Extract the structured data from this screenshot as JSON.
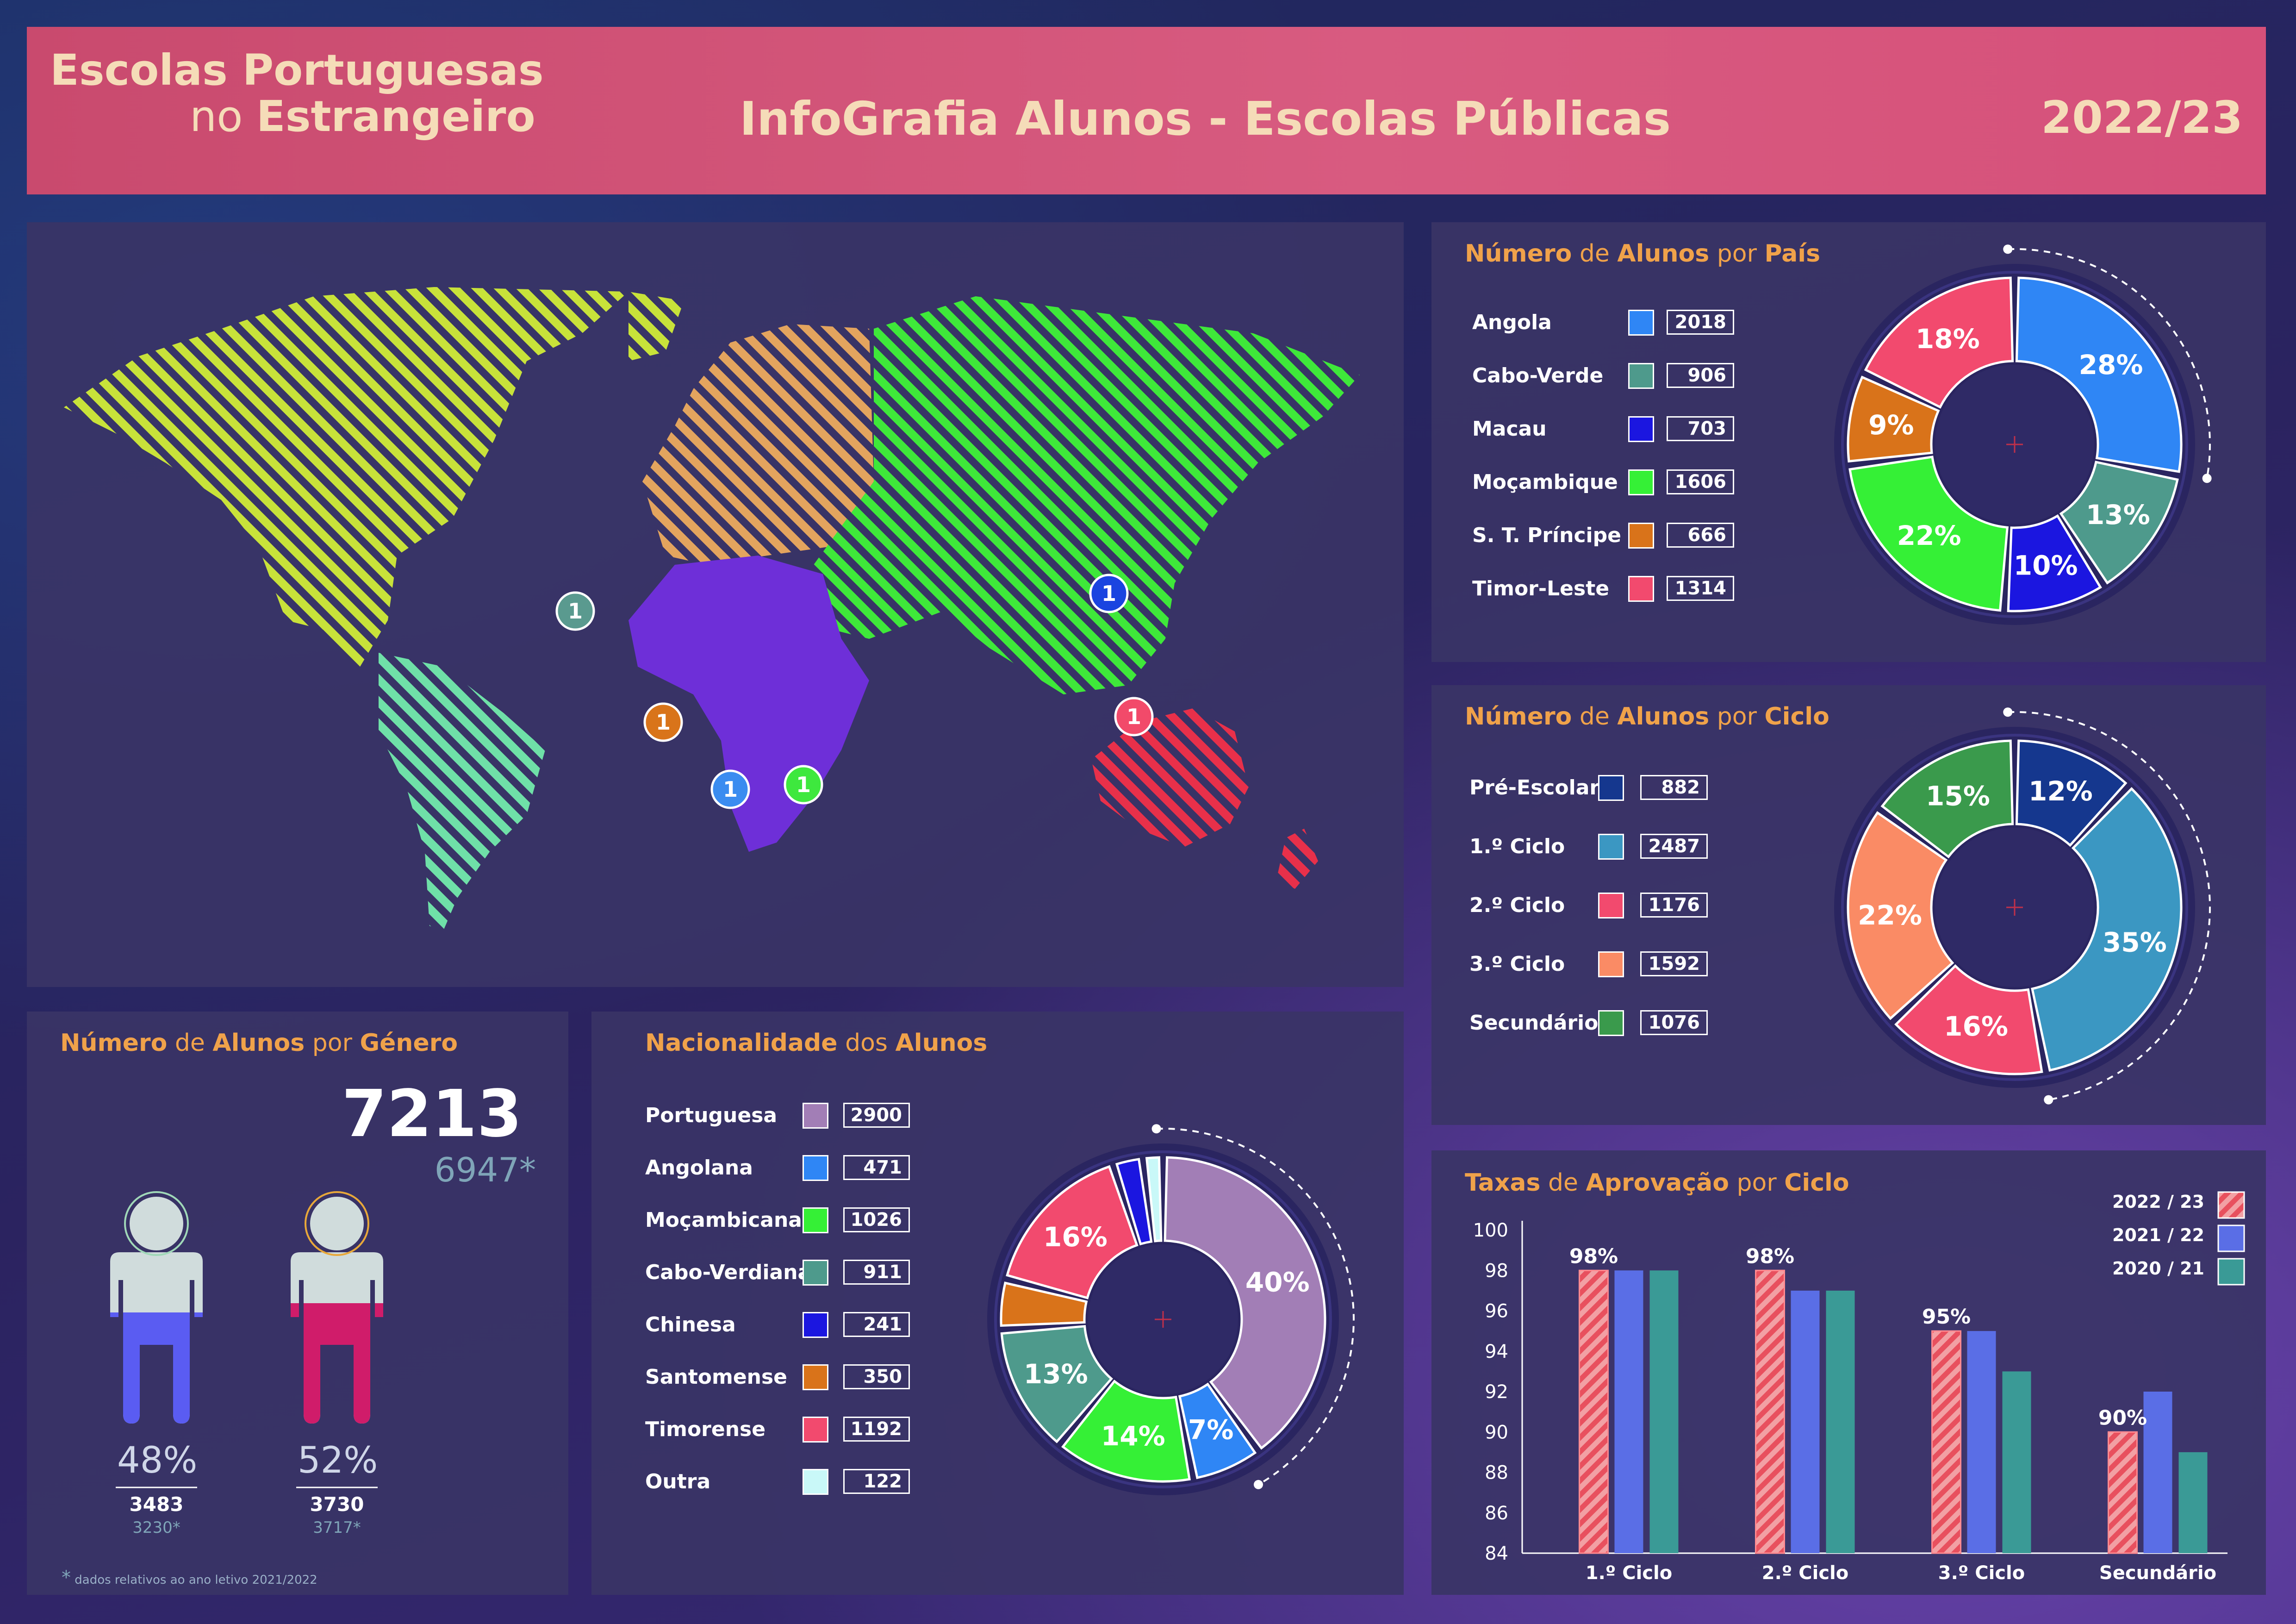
{
  "header": {
    "line1": "Escolas Portuguesas",
    "line2a": "no ",
    "line2b": "Estrangeiro",
    "title": "InfoGrafia Alunos - Escolas Públicas",
    "year": "2022/23"
  },
  "map": {
    "markers": [
      {
        "label": "1",
        "color": "#5a9a8f"
      },
      {
        "label": "1",
        "color": "#1a44e0"
      },
      {
        "label": "1",
        "color": "#d9741a"
      },
      {
        "label": "1",
        "color": "#f24a6a"
      },
      {
        "label": "1",
        "color": "#3a8cf0"
      },
      {
        "label": "1",
        "color": "#3ee83e"
      }
    ]
  },
  "pais": {
    "title_a": "Número",
    "title_b": " de ",
    "title_c": "Alunos",
    "title_d": " por ",
    "title_e": "País",
    "rows": [
      {
        "label": "Angola",
        "value": "2018",
        "color": "#2f86f5"
      },
      {
        "label": "Cabo-Verde",
        "value": "906",
        "color": "#4e9a8c"
      },
      {
        "label": "Macau",
        "value": "703",
        "color": "#1b16e0"
      },
      {
        "label": "Moçambique",
        "value": "1606",
        "color": "#35f036"
      },
      {
        "label": "S. T. Príncipe",
        "value": "666",
        "color": "#d9731a"
      },
      {
        "label": "Timor-Leste",
        "value": "1314",
        "color": "#f24a6e"
      }
    ],
    "donut": [
      {
        "pct": 28,
        "label": "28%",
        "color": "#2f86f5"
      },
      {
        "pct": 13,
        "label": "13%",
        "color": "#4e9a8c"
      },
      {
        "pct": 10,
        "label": "10%",
        "color": "#1b16e0"
      },
      {
        "pct": 22,
        "label": "22%",
        "color": "#35f036"
      },
      {
        "pct": 9,
        "label": "9%",
        "color": "#d9731a"
      },
      {
        "pct": 18,
        "label": "18%",
        "color": "#f24a6e"
      }
    ]
  },
  "ciclo": {
    "title_a": "Número",
    "title_b": " de ",
    "title_c": "Alunos",
    "title_d": " por ",
    "title_e": "Ciclo",
    "rows": [
      {
        "label": "Pré-Escolar",
        "value": "882",
        "color": "#15378e"
      },
      {
        "label": "1.º Ciclo",
        "value": "2487",
        "color": "#3b97c2"
      },
      {
        "label": "2.º Ciclo",
        "value": "1176",
        "color": "#f24a6e"
      },
      {
        "label": "3.º Ciclo",
        "value": "1592",
        "color": "#fa8b65"
      },
      {
        "label": "Secundário",
        "value": "1076",
        "color": "#3a9a4c"
      }
    ],
    "donut": [
      {
        "pct": 12,
        "label": "12%",
        "color": "#15378e"
      },
      {
        "pct": 35,
        "label": "35%",
        "color": "#3b97c2"
      },
      {
        "pct": 16,
        "label": "16%",
        "color": "#f24a6e"
      },
      {
        "pct": 22,
        "label": "22%",
        "color": "#fa8b65"
      },
      {
        "pct": 15,
        "label": "15%",
        "color": "#3a9a4c"
      }
    ]
  },
  "genero": {
    "title_a": "Número",
    "title_b": " de ",
    "title_c": "Alunos",
    "title_d": " por ",
    "title_e": "Género",
    "total": "7213",
    "prev_total": "6947*",
    "male": {
      "pct": "48%",
      "value": "3483",
      "prev": "3230*",
      "fill_pct": 48
    },
    "female": {
      "pct": "52%",
      "value": "3730",
      "prev": "3717*",
      "fill_pct": 52
    },
    "footnote_star": "*",
    "footnote": " dados relativos ao ano letivo 2021/2022"
  },
  "nacionalidade": {
    "title_a": "Nacionalidade",
    "title_b": " dos ",
    "title_c": "Alunos",
    "rows": [
      {
        "label": "Portuguesa",
        "value": "2900",
        "color": "#a27eb6"
      },
      {
        "label": "Angolana",
        "value": "471",
        "color": "#2f86f5"
      },
      {
        "label": "Moçambicana",
        "value": "1026",
        "color": "#35f036"
      },
      {
        "label": "Cabo-Verdiana",
        "value": "911",
        "color": "#4e9a8c"
      },
      {
        "label": "Chinesa",
        "value": "241",
        "color": "#1b16e0"
      },
      {
        "label": "Santomense",
        "value": "350",
        "color": "#d9731a"
      },
      {
        "label": "Timorense",
        "value": "1192",
        "color": "#f24a6e"
      },
      {
        "label": "Outra",
        "value": "122",
        "color": "#c9f8f8"
      }
    ],
    "donut": [
      {
        "pct": 40,
        "label": "40%",
        "color": "#a27eb6"
      },
      {
        "pct": 7,
        "label": "7%",
        "color": "#2f86f5"
      },
      {
        "pct": 14,
        "label": "14%",
        "color": "#35f036"
      },
      {
        "pct": 13,
        "label": "13%",
        "color": "#4e9a8c"
      },
      {
        "pct": 5,
        "label": "",
        "color": "#d9731a"
      },
      {
        "pct": 16,
        "label": "16%",
        "color": "#f24a6e"
      },
      {
        "pct": 3,
        "label": "",
        "color": "#1b16e0"
      },
      {
        "pct": 2,
        "label": "",
        "color": "#c9f8f8"
      }
    ]
  },
  "taxas": {
    "title_a": "Taxas",
    "title_b": " de ",
    "title_c": "Aprovação",
    "title_d": " por ",
    "title_e": "Ciclo"
  },
  "chart_data": {
    "type": "bar",
    "title": "Taxas de Aprovação por Ciclo",
    "categories": [
      "1.º Ciclo",
      "2.º Ciclo",
      "3.º Ciclo",
      "Secundário"
    ],
    "series": [
      {
        "name": "2022 / 23",
        "values": [
          98,
          98,
          95,
          90
        ],
        "color": "#e8505e"
      },
      {
        "name": "2021 / 22",
        "values": [
          98,
          97,
          95,
          92
        ],
        "color": "#5a6ee6"
      },
      {
        "name": "2020 / 21",
        "values": [
          98,
          97,
          93,
          89
        ],
        "color": "#3a9a96"
      }
    ],
    "data_labels": [
      "98%",
      "98%",
      "95%",
      "90%"
    ],
    "yticks": [
      "100",
      "98",
      "96",
      "94",
      "92",
      "90",
      "88",
      "86",
      "84"
    ],
    "ylim": [
      84,
      100
    ],
    "legend": "top-right"
  }
}
